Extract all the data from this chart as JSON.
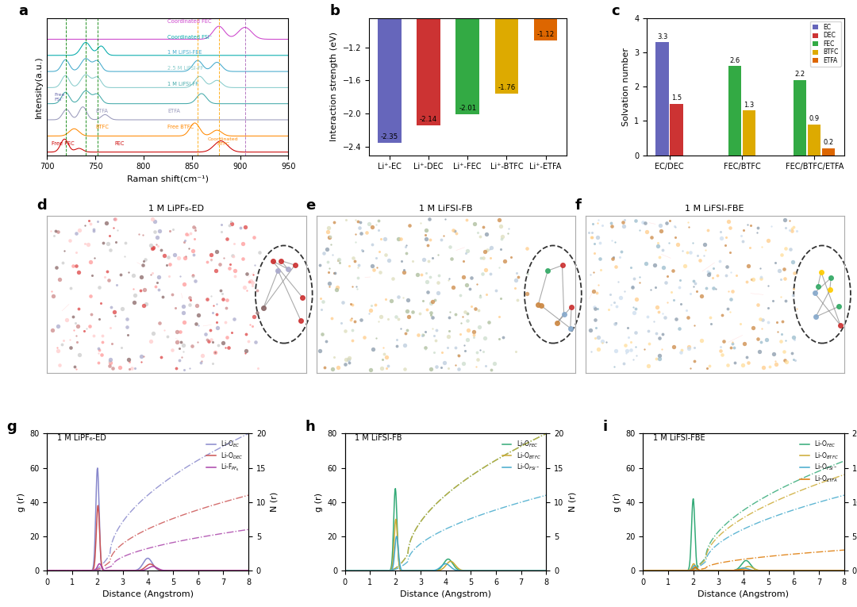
{
  "panel_a": {
    "title": "a",
    "xlabel": "Raman shift(cm⁻¹)",
    "ylabel": "Intensity(a.u.)",
    "xlim": [
      700,
      950
    ],
    "dashed_lines_green": [
      719,
      740,
      752
    ],
    "dashed_lines_orange": [
      855,
      878
    ],
    "dashed_line_purple": [
      903
    ],
    "line_colors": [
      "#cc0000",
      "#ff8800",
      "#9999bb",
      "#44aaaa",
      "#88cccc",
      "#44aacc",
      "#00aaaa",
      "#cc44cc"
    ],
    "offsets": [
      0,
      1,
      2,
      3,
      4,
      5,
      6,
      7
    ]
  },
  "panel_b": {
    "title": "b",
    "ylabel": "Interaction strength (eV)",
    "categories": [
      "Li⁺-EC",
      "Li⁺-DEC",
      "Li⁺-FEC",
      "Li⁺-BTFC",
      "Li⁺-ETFA"
    ],
    "values": [
      -2.35,
      -2.14,
      -2.01,
      -1.76,
      -1.12
    ],
    "bar_colors": [
      "#6666bb",
      "#cc3333",
      "#33aa44",
      "#ddaa00",
      "#dd6600"
    ],
    "ylim": [
      -2.5,
      -0.85
    ],
    "yticks": [
      -2.4,
      -2.0,
      -1.6,
      -1.2
    ],
    "value_labels": [
      "-2.35",
      "-2.14",
      "-2.01",
      "-1.76",
      "-1.12"
    ]
  },
  "panel_c": {
    "title": "c",
    "ylabel": "Solvation number",
    "ylim": [
      0,
      4
    ],
    "yticks": [
      0,
      1,
      2,
      3,
      4
    ],
    "groups": [
      "EC/DEC",
      "FEC/BTFC",
      "FEC/BTFC/ETFA"
    ],
    "legend_labels": [
      "EC",
      "DEC",
      "FEC",
      "BTFC",
      "ETFA"
    ],
    "legend_colors": [
      "#6666bb",
      "#cc3333",
      "#33aa44",
      "#ddaa00",
      "#dd6600"
    ],
    "group0": [
      [
        "EC",
        3.3,
        "#6666bb"
      ],
      [
        "DEC",
        1.5,
        "#cc3333"
      ]
    ],
    "group1": [
      [
        "FEC",
        2.6,
        "#33aa44"
      ],
      [
        "BTFC",
        1.3,
        "#ddaa00"
      ]
    ],
    "group2": [
      [
        "FEC",
        2.2,
        "#33aa44"
      ],
      [
        "BTFC",
        0.9,
        "#ddaa00"
      ],
      [
        "ETFA",
        0.2,
        "#dd6600"
      ]
    ]
  },
  "panel_g": {
    "title": "g",
    "subtitle": "1 M LiPF₆-ED",
    "xlabel": "Distance (Angstrom)",
    "ylabel_left": "g (r)",
    "ylabel_right": "N (r)",
    "xlim": [
      0,
      8
    ],
    "ylim_left": [
      0,
      80
    ],
    "ylim_right": [
      0,
      20
    ],
    "yticks_left": [
      0,
      20,
      40,
      60,
      80
    ],
    "yticks_right": [
      0,
      5,
      10,
      15,
      20
    ],
    "legend": [
      "Li-O$_{EC}$",
      "Li-O$_{DEC}$",
      "Li-F$_{PF_6}$"
    ],
    "g_colors": [
      "#8888cc",
      "#cc5555",
      "#aa44aa"
    ],
    "n_max": [
      20,
      11,
      6
    ]
  },
  "panel_h": {
    "title": "h",
    "subtitle": "1 M LiFSI-FB",
    "xlabel": "Distance (Angstrom)",
    "ylabel_left": "g (r)",
    "ylabel_right": "N (r)",
    "xlim": [
      0,
      8
    ],
    "ylim_left": [
      0,
      80
    ],
    "ylim_right": [
      0,
      20
    ],
    "yticks_left": [
      0,
      20,
      40,
      60,
      80
    ],
    "yticks_right": [
      0,
      5,
      10,
      15,
      20
    ],
    "legend": [
      "Li-O$_{FEC}$",
      "Li-O$_{BTFC}$",
      "Li-O$_{FSI^-}$"
    ],
    "g_colors": [
      "#33aa77",
      "#ccaa33",
      "#44aacc"
    ],
    "n_max": [
      20,
      20,
      11
    ]
  },
  "panel_i": {
    "title": "i",
    "subtitle": "1 M LiFSI-FBE",
    "xlabel": "Distance (Angstrom)",
    "ylabel_left": "g (r)",
    "ylabel_right": "N (r)",
    "xlim": [
      0,
      8
    ],
    "ylim_left": [
      0,
      80
    ],
    "ylim_right": [
      0,
      20
    ],
    "yticks_left": [
      0,
      20,
      40,
      60,
      80
    ],
    "yticks_right": [
      0,
      5,
      10,
      15,
      20
    ],
    "legend": [
      "Li-O$_{FEC}$",
      "Li-O$_{BTFC}$",
      "Li-O$_{FSI^-}$",
      "Li-O$_{ETFA}$"
    ],
    "g_colors": [
      "#33aa77",
      "#ccaa33",
      "#44aacc",
      "#dd7700"
    ],
    "n_max": [
      16,
      14,
      11,
      3
    ]
  },
  "panel_d_title": "d",
  "panel_d_subtitle": "1 M LiPF₆-ED",
  "panel_e_title": "e",
  "panel_e_subtitle": "1 M LiFSI-FB",
  "panel_f_title": "f",
  "panel_f_subtitle": "1 M LiFSI-FBE",
  "background_color": "#ffffff",
  "figure_label_fontsize": 13,
  "axis_fontsize": 8
}
